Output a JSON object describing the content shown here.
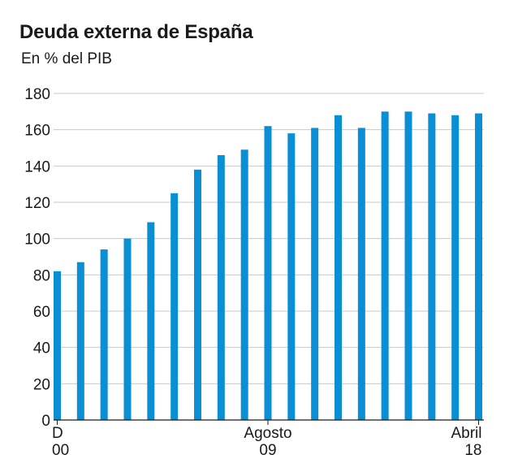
{
  "chart_data": {
    "type": "bar",
    "title": "Deuda externa de España",
    "subtitle": "En % del PIB",
    "xlabel": "",
    "ylabel": "",
    "ylim": [
      0,
      180
    ],
    "yticks": [
      0,
      20,
      40,
      60,
      80,
      100,
      120,
      140,
      160,
      180
    ],
    "grid": true,
    "bar_color": "#0a8fd4",
    "grid_color": "#c8c8c8",
    "values": [
      82,
      87,
      94,
      100,
      109,
      125,
      138,
      146,
      149,
      162,
      158,
      161,
      168,
      161,
      170,
      170,
      169,
      168,
      169
    ],
    "x_labels": [
      {
        "index": 0,
        "line1": "D",
        "line2": "00"
      },
      {
        "index": 9,
        "line1": "Agosto",
        "line2": "09"
      },
      {
        "index": 18,
        "line1": "Abril",
        "line2": "18"
      }
    ]
  }
}
